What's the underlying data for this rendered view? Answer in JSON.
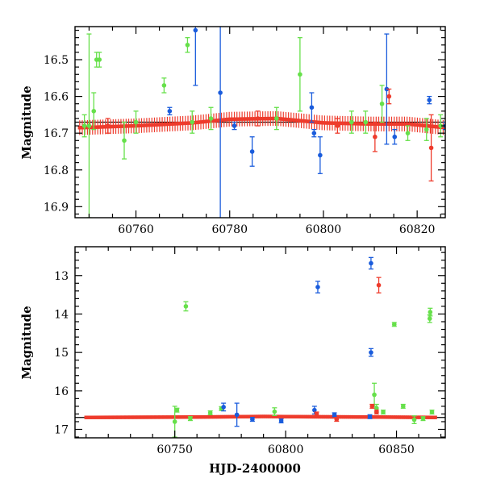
{
  "chart_data": [
    {
      "type": "scatter",
      "panel": "top",
      "xlabel": "",
      "ylabel": "Magnitude",
      "xlim": [
        60747,
        60826
      ],
      "ylim": [
        16.93,
        16.41
      ],
      "y_inverted": true,
      "xticks": [
        60760,
        60780,
        60800,
        60820
      ],
      "yticks": [
        16.5,
        16.6,
        16.7,
        16.8,
        16.9
      ],
      "xtick_labels": [
        "60760",
        "60780",
        "60800",
        "60820"
      ],
      "ytick_labels": [
        "16.5",
        "16.6",
        "16.7",
        "16.8",
        "16.9"
      ],
      "baseline": {
        "x_range": [
          60747,
          60826
        ],
        "y": 16.67
      },
      "series": [
        {
          "color": "#66e04a",
          "points": [
            [
              60750.0,
              16.68,
              0.25
            ],
            [
              60751.0,
              16.64,
              0.05
            ],
            [
              60751.6,
              16.5,
              0.02
            ],
            [
              60752.2,
              16.5,
              0.02
            ],
            [
              60757.5,
              16.72,
              0.05
            ],
            [
              60766.0,
              16.57,
              0.02
            ],
            [
              60771.0,
              16.46,
              0.02
            ],
            [
              60795.0,
              16.54,
              0.1
            ],
            [
              60812.5,
              16.62,
              0.05
            ],
            [
              60818.0,
              16.7,
              0.02
            ],
            [
              60749.0,
              16.68,
              0.03
            ],
            [
              60760.0,
              16.67,
              0.03
            ],
            [
              60772.0,
              16.67,
              0.03
            ],
            [
              60776.0,
              16.66,
              0.03
            ],
            [
              60790.0,
              16.66,
              0.03
            ],
            [
              60806.0,
              16.67,
              0.03
            ],
            [
              60809.0,
              16.67,
              0.03
            ],
            [
              60822.0,
              16.69,
              0.03
            ],
            [
              60825.0,
              16.68,
              0.03
            ]
          ]
        },
        {
          "color": "#1a5cdc",
          "points": [
            [
              60772.7,
              16.42,
              0.15
            ],
            [
              60778.0,
              16.59,
              0.6
            ],
            [
              60784.8,
              16.75,
              0.04
            ],
            [
              60797.5,
              16.63,
              0.04
            ],
            [
              60799.3,
              16.76,
              0.05
            ],
            [
              60813.5,
              16.58,
              0.15
            ],
            [
              60815.2,
              16.71,
              0.02
            ],
            [
              60822.6,
              16.61,
              0.01
            ],
            [
              60767.2,
              16.64,
              0.01
            ],
            [
              60781.0,
              16.68,
              0.01
            ],
            [
              60798.0,
              16.7,
              0.01
            ],
            [
              60826.0,
              16.68,
              0.01
            ]
          ]
        },
        {
          "color": "#ee3b2c",
          "points": [
            [
              60814.0,
              16.6,
              0.02
            ],
            [
              60823.0,
              16.74,
              0.09
            ],
            [
              60811.0,
              16.71,
              0.04
            ],
            [
              60754.0,
              16.68,
              0.02
            ],
            [
              60786.0,
              16.66,
              0.02
            ],
            [
              60803.0,
              16.68,
              0.02
            ]
          ]
        }
      ],
      "dense_band": {
        "color": "#ee3b2c",
        "x_range": [
          60748,
          60826
        ],
        "y_profile": [
          [
            60748,
            16.685
          ],
          [
            60760,
            16.68
          ],
          [
            60772,
            16.672
          ],
          [
            60780,
            16.662
          ],
          [
            60790,
            16.66
          ],
          [
            60800,
            16.672
          ],
          [
            60810,
            16.675
          ],
          [
            60818,
            16.675
          ],
          [
            60826,
            16.685
          ]
        ],
        "errbar": 0.02
      }
    },
    {
      "type": "scatter",
      "panel": "bottom",
      "xlabel": "HJD-2400000",
      "ylabel": "Magnitude",
      "xlim": [
        60705,
        60872
      ],
      "ylim": [
        17.22,
        12.25
      ],
      "y_inverted": true,
      "xticks": [
        60750,
        60800,
        60850
      ],
      "yticks": [
        13,
        14,
        15,
        16,
        17
      ],
      "xtick_labels": [
        "60750",
        "60800",
        "60850"
      ],
      "ytick_labels": [
        "13",
        "14",
        "15",
        "16",
        "17"
      ],
      "baseline": {
        "x_range": [
          60705,
          60872
        ],
        "y": 16.69
      },
      "series": [
        {
          "color": "#66e04a",
          "points": [
            [
              60755.0,
              13.8,
              0.12
            ],
            [
              60849.0,
              14.27,
              0.05
            ],
            [
              60865.0,
              14.12,
              0.1
            ],
            [
              60865.2,
              13.95,
              0.1
            ],
            [
              60750.0,
              16.8,
              0.4
            ],
            [
              60751.0,
              16.5,
              0.05
            ],
            [
              60757.0,
              16.72,
              0.05
            ],
            [
              60766.0,
              16.57,
              0.05
            ],
            [
              60771.0,
              16.46,
              0.05
            ],
            [
              60795.0,
              16.54,
              0.1
            ],
            [
              60840.0,
              16.1,
              0.3
            ],
            [
              60841.0,
              16.45,
              0.1
            ],
            [
              60844.0,
              16.55,
              0.05
            ],
            [
              60853.0,
              16.4,
              0.05
            ],
            [
              60858.0,
              16.75,
              0.1
            ],
            [
              60866.0,
              16.55,
              0.05
            ],
            [
              60862.0,
              16.72,
              0.05
            ]
          ]
        },
        {
          "color": "#1a5cdc",
          "points": [
            [
              60838.5,
              12.68,
              0.15
            ],
            [
              60814.5,
              13.3,
              0.15
            ],
            [
              60838.5,
              15.0,
              0.1
            ],
            [
              60772.0,
              16.42,
              0.1
            ],
            [
              60778.0,
              16.62,
              0.3
            ],
            [
              60785.0,
              16.74,
              0.05
            ],
            [
              60798.0,
              16.78,
              0.05
            ],
            [
              60813.0,
              16.5,
              0.1
            ],
            [
              60838.0,
              16.67,
              0.05
            ],
            [
              60822.0,
              16.62,
              0.05
            ]
          ]
        },
        {
          "color": "#ee3b2c",
          "points": [
            [
              60842.0,
              13.25,
              0.2
            ],
            [
              60839.0,
              16.4,
              0.05
            ],
            [
              60841.0,
              16.55,
              0.05
            ],
            [
              60814.0,
              16.6,
              0.05
            ],
            [
              60823.0,
              16.74,
              0.05
            ]
          ]
        }
      ],
      "dense_band": {
        "color": "#ee3b2c",
        "x_range": [
          60710,
          60868
        ],
        "y_profile": [
          [
            60710,
            16.69
          ],
          [
            60760,
            16.68
          ],
          [
            60790,
            16.665
          ],
          [
            60810,
            16.672
          ],
          [
            60840,
            16.68
          ],
          [
            60868,
            16.69
          ]
        ],
        "errbar": 0.04
      }
    }
  ]
}
